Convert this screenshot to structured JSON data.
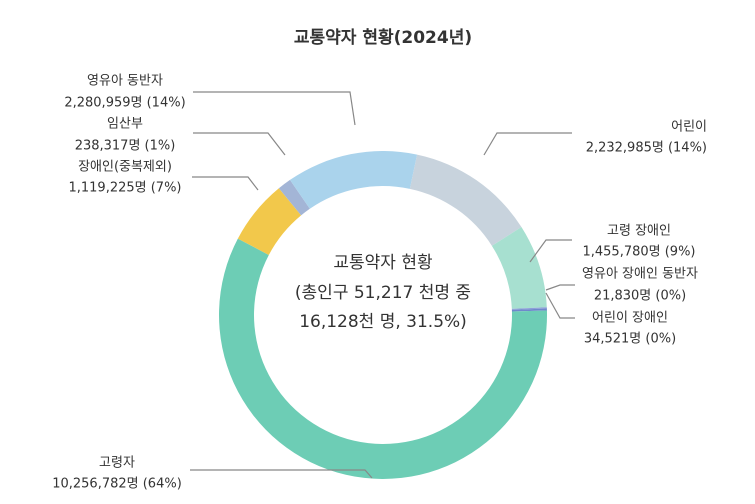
{
  "chart_data": {
    "type": "donut",
    "title": "교통약자 현황(2024년)",
    "center_text": [
      "교통약자 현황",
      "(총인구 51,217 천명 중",
      "16,128천 명, 31.5%)"
    ],
    "categories": [
      "어린이",
      "고령 장애인",
      "영유아 장애인 동반자",
      "어린이 장애인",
      "고령자",
      "장애인(중복제외)",
      "임산부",
      "영유아 동반자"
    ],
    "values": [
      2232985,
      1455780,
      21830,
      34521,
      10256782,
      1119225,
      238317,
      2280959
    ],
    "value_labels": [
      "2,232,985명 (14%)",
      "1,455,780명 (9%)",
      "21,830명 (0%)",
      "34,521명 (0%)",
      "10,256,782명 (64%)",
      "1,119,225명 (7%)",
      "238,317명 (1%)",
      "2,280,959명 (14%)"
    ],
    "colors": [
      "#c8d3dd",
      "#a7e0d0",
      "#8d9fd8",
      "#6f88cc",
      "#6dcdb5",
      "#f2c84b",
      "#a3b5d6",
      "#aad3ec"
    ]
  }
}
